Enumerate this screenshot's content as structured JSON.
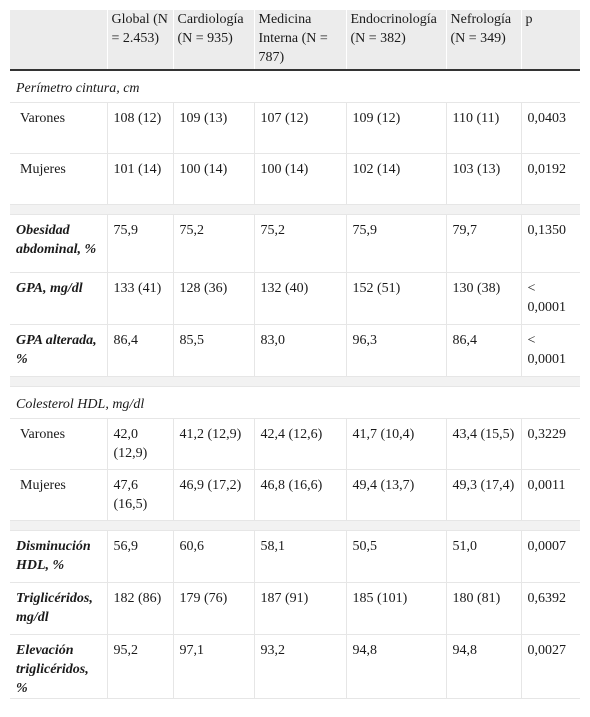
{
  "table": {
    "headers": [
      "",
      "Global (N = 2.453)",
      "Cardiología (N = 935)",
      "Medicina Interna (N = 787)",
      "Endocrinología (N = 382)",
      "Nefrología (N = 349)",
      "p"
    ],
    "sections": {
      "perimetro": "Perímetro cintura, cm",
      "hdl": "Colesterol HDL, mg/dl"
    },
    "rows": {
      "cintura_varones": [
        "Varones",
        "108 (12)",
        "109 (13)",
        "107 (12)",
        "109 (12)",
        "110 (11)",
        "0,0403"
      ],
      "cintura_mujeres": [
        "Mujeres",
        "101 (14)",
        "100 (14)",
        "100 (14)",
        "102 (14)",
        "103 (13)",
        "0,0192"
      ],
      "obesidad": [
        "Obesidad abdominal, %",
        "75,9",
        "75,2",
        "75,2",
        "75,9",
        "79,7",
        "0,1350"
      ],
      "gpa": [
        "GPA, mg/dl",
        "133 (41)",
        "128 (36)",
        "132 (40)",
        "152 (51)",
        "130 (38)",
        "< 0,0001"
      ],
      "gpa_alterada": [
        "GPA alterada, %",
        "86,4",
        "85,5",
        "83,0",
        "96,3",
        "86,4",
        "< 0,0001"
      ],
      "hdl_varones": [
        "Varones",
        "42,0 (12,9)",
        "41,2 (12,9)",
        "42,4 (12,6)",
        "41,7 (10,4)",
        "43,4 (15,5)",
        "0,3229"
      ],
      "hdl_mujeres": [
        "Mujeres",
        "47,6 (16,5)",
        "46,9 (17,2)",
        "46,8 (16,6)",
        "49,4 (13,7)",
        "49,3 (17,4)",
        "0,0011"
      ],
      "disminucion_hdl": [
        "Disminución HDL, %",
        "56,9",
        "60,6",
        "58,1",
        "50,5",
        "51,0",
        "0,0007"
      ],
      "trigliceridos": [
        "Triglicéridos, mg/dl",
        "182 (86)",
        "179 (76)",
        "187 (91)",
        "185 (101)",
        "180 (81)",
        "0,6392"
      ],
      "elevacion_tg": [
        "Elevación triglicéridos, %",
        "95,2",
        "97,1",
        "93,2",
        "94,8",
        "94,8",
        "0,0027"
      ]
    }
  }
}
